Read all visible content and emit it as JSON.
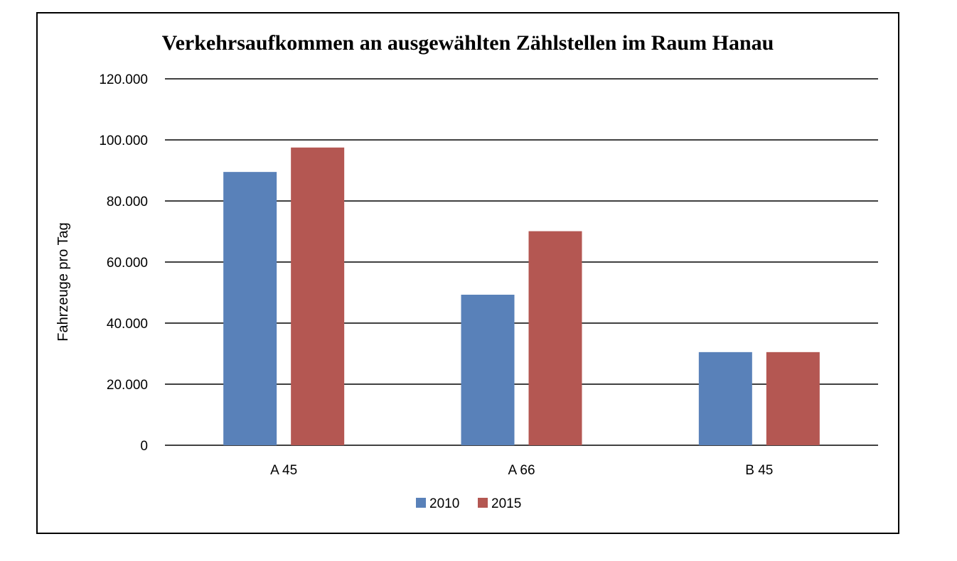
{
  "chart_data": {
    "type": "bar",
    "title": "Verkehrsaufkommen an ausgewählten Zählstellen im Raum Hanau",
    "xlabel": "",
    "ylabel": "Fahrzeuge pro Tag",
    "categories": [
      "A 45",
      "A 66",
      "B 45"
    ],
    "series": [
      {
        "name": "2010",
        "color": "#5981B9",
        "values": [
          89500,
          49300,
          30500
        ]
      },
      {
        "name": "2015",
        "color": "#B45752",
        "values": [
          97500,
          70100,
          30500
        ]
      }
    ],
    "ylim": [
      0,
      120000
    ],
    "yticks": [
      0,
      20000,
      40000,
      60000,
      80000,
      100000,
      120000
    ],
    "ytick_labels": [
      "0",
      "20.000",
      "40.000",
      "60.000",
      "80.000",
      "100.000",
      "120.000"
    ],
    "grid": true,
    "legend_position": "bottom"
  }
}
